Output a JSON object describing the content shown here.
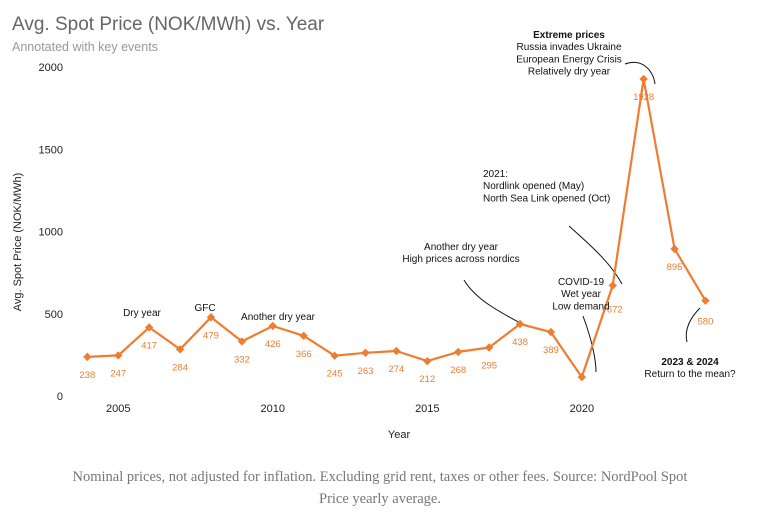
{
  "chart_data": {
    "type": "line",
    "title": "Avg. Spot Price (NOK/MWh) vs. Year",
    "subtitle": "Annotated with key events",
    "xlabel": "Year",
    "ylabel": "Avg. Spot Price (NOK/MWh)",
    "xlim": [
      2003.6,
      2024.6
    ],
    "ylim": [
      0,
      2050
    ],
    "x_ticks": [
      2005,
      2010,
      2015,
      2020
    ],
    "y_ticks": [
      0,
      500,
      1000,
      1500,
      2000
    ],
    "grid": false,
    "line_color": "#ee7d31",
    "series": [
      {
        "name": "Avg. Spot Price",
        "x": [
          2004,
          2005,
          2006,
          2007,
          2008,
          2009,
          2010,
          2011,
          2012,
          2013,
          2014,
          2015,
          2016,
          2017,
          2018,
          2019,
          2020,
          2021,
          2022,
          2023,
          2024
        ],
        "values": [
          238,
          247,
          417,
          284,
          479,
          332,
          426,
          366,
          245,
          263,
          274,
          212,
          268,
          295,
          438,
          389,
          115,
          672,
          1928,
          895,
          580
        ],
        "labels": [
          "238",
          "247",
          "417",
          "284",
          "479",
          "332",
          "426",
          "366",
          "245",
          "263",
          "274",
          "212",
          "268",
          "295",
          "438",
          "389",
          "",
          "672",
          "1928",
          "895",
          "580"
        ]
      }
    ],
    "annotations": [
      {
        "id": "dry-2006",
        "lines": [
          "Dry year"
        ],
        "bold_first": false
      },
      {
        "id": "gfc-2008",
        "lines": [
          "GFC"
        ],
        "bold_first": false
      },
      {
        "id": "dry-2010",
        "lines": [
          "Another dry year"
        ],
        "bold_first": false
      },
      {
        "id": "dry-2018",
        "lines": [
          "Another dry year",
          "High prices across nordics"
        ],
        "bold_first": false
      },
      {
        "id": "covid-2020",
        "lines": [
          "COVID-19",
          "Wet year",
          "Low demand"
        ],
        "bold_first": false
      },
      {
        "id": "links-2021",
        "lines": [
          "2021:",
          "Nordlink opened (May)",
          "North Sea Link opened (Oct)"
        ],
        "bold_first": false
      },
      {
        "id": "extreme-2022",
        "lines": [
          "Extreme prices",
          "Russia invades Ukraine",
          "European Energy Crisis",
          "Relatively dry year"
        ],
        "bold_first": true
      },
      {
        "id": "mean-2023",
        "lines": [
          "2023 & 2024",
          "Return to the mean?"
        ],
        "bold_first": true
      }
    ]
  },
  "footnote": "Nominal prices, not adjusted for inflation. Excluding grid rent, taxes or other fees. Source: NordPool Spot Price yearly average."
}
